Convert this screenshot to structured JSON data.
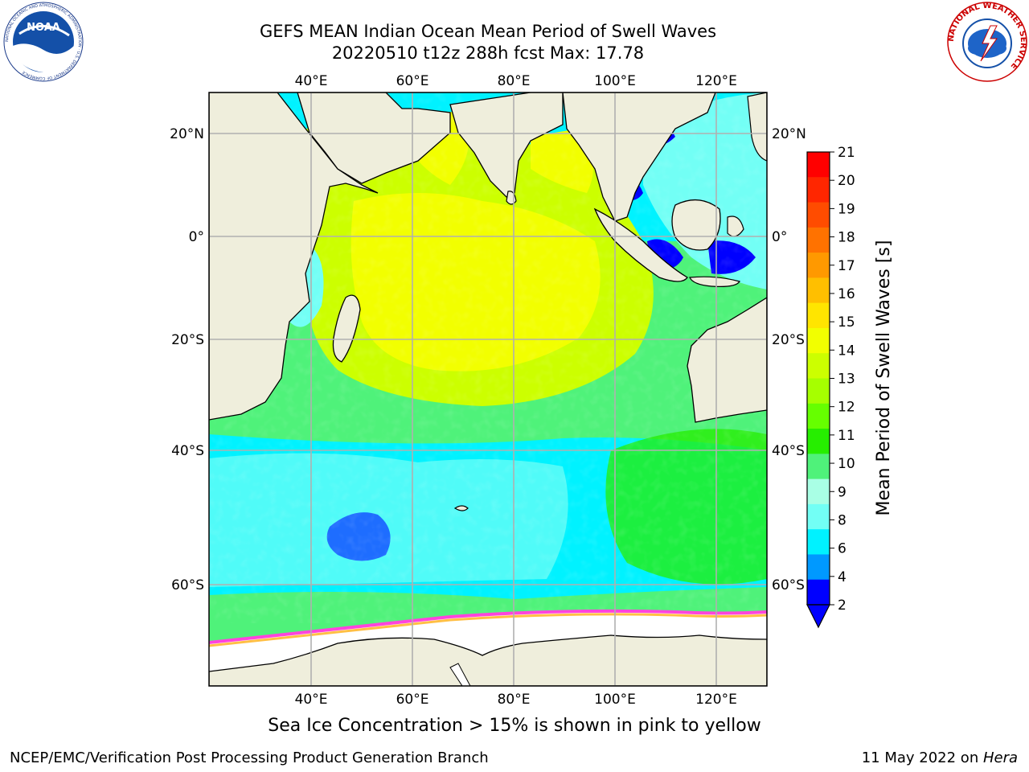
{
  "header": {
    "title_line1": "GEFS MEAN Indian Ocean Mean Period of Swell Waves",
    "title_line2": "20220510 t12z 288h fcst   Max: 17.78"
  },
  "logos": {
    "left": "noaa-logo",
    "left_text": "NOAA",
    "left_ring_text": "NATIONAL OCEANIC AND ATMOSPHERIC ADMINISTRATION · U.S. DEPARTMENT OF COMMERCE",
    "right": "nws-logo",
    "right_ring_text": "NATIONAL WEATHER SERVICE"
  },
  "map": {
    "lon_ticks": [
      "40°E",
      "60°E",
      "80°E",
      "100°E",
      "120°E"
    ],
    "lat_ticks": [
      "20°N",
      "0°",
      "20°S",
      "40°S",
      "60°S"
    ],
    "grid": true,
    "land_color": "#efeedc",
    "sea_ice_color": "#ffffff"
  },
  "colorbar": {
    "label": "Mean Period of Swell Waves [s]",
    "ticks": [
      "21",
      "20",
      "19",
      "18",
      "17",
      "16",
      "15",
      "14",
      "13",
      "12",
      "11",
      "10",
      "9",
      "8",
      "6",
      "4",
      "2"
    ],
    "colors_top_to_bottom": [
      "#ff0000",
      "#ff2600",
      "#ff4c00",
      "#ff7200",
      "#ff9900",
      "#ffbf00",
      "#ffe500",
      "#f2ff00",
      "#ccff00",
      "#a6ff00",
      "#66ff00",
      "#26ee00",
      "#4ff27a",
      "#a9ffe5",
      "#72fff5",
      "#00f2ff",
      "#0099ff",
      "#0000ff"
    ],
    "extend": "min"
  },
  "footer": {
    "note": "Sea Ice Concentration > 15% is shown in pink to yellow",
    "left": "NCEP/EMC/Verification Post Processing Product Generation Branch",
    "right_prefix": "11 May 2022 on ",
    "right_italic": "Hera"
  }
}
